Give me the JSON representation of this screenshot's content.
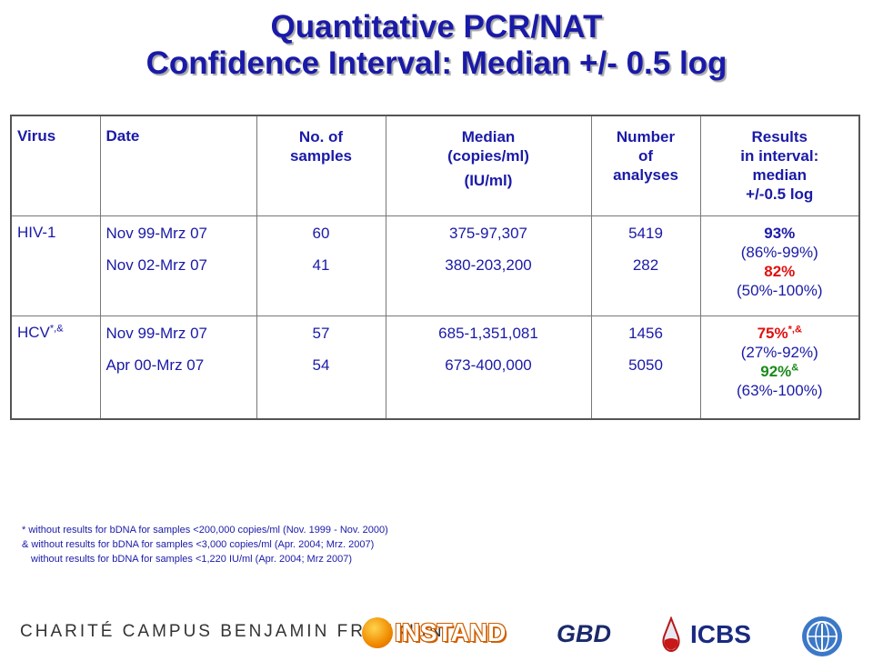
{
  "title": {
    "line1": "Quantitative PCR/NAT",
    "line2": "Confidence Interval: Median +/- 0.5 log"
  },
  "table": {
    "headers": {
      "virus": "Virus",
      "date": "Date",
      "samples": [
        "No. of",
        "samples"
      ],
      "median": [
        "Median",
        "(copies/ml)",
        "(IU/ml)"
      ],
      "analyses": [
        "Number",
        "of",
        "analyses"
      ],
      "results": [
        "Results",
        "in interval:",
        "median",
        "+/-0.5 log"
      ]
    },
    "rows": [
      {
        "virus": "HIV-1",
        "virus_sup": "",
        "dates": [
          "Nov 99-Mrz 07",
          "Nov 02-Mrz 07"
        ],
        "samples": [
          "60",
          "41"
        ],
        "median": [
          "375-97,307",
          "380-203,200"
        ],
        "analyses": [
          "5419",
          "282"
        ],
        "result1": "93%",
        "result1_sup": "",
        "range1": "(86%-99%)",
        "result2": "82%",
        "result2_sup": "",
        "range2": "(50%-100%)"
      },
      {
        "virus": "HCV",
        "virus_sup": "*,&",
        "dates": [
          "Nov 99-Mrz 07",
          "Apr 00-Mrz 07"
        ],
        "samples": [
          "57",
          "54"
        ],
        "median": [
          "685-1,351,081",
          "673-400,000"
        ],
        "analyses": [
          "1456",
          "5050"
        ],
        "result1": "75%",
        "result1_sup": "*,&",
        "range1": "(27%-92%)",
        "result2": "92%",
        "result2_sup": "&",
        "range2": "(63%-100%)"
      }
    ]
  },
  "notes": [
    "* without results for bDNA for samples <200,000 copies/ml (Nov. 1999 - Nov. 2000)",
    "& without results for bDNA for samples <3,000 copies/ml (Apr. 2004; Mrz. 2007)",
    "without results for bDNA for samples <1,220 IU/ml (Apr. 2004; Mrz 2007)"
  ],
  "footer": {
    "charite": "CHARITÉ CAMPUS BENJAMIN FRANKLIN",
    "instand": "INSTAND",
    "gbd": "GBD",
    "icbs": "ICBS"
  },
  "colors": {
    "text": "#1a1aa8",
    "red": "#e01010",
    "green": "#1a8a1a"
  }
}
